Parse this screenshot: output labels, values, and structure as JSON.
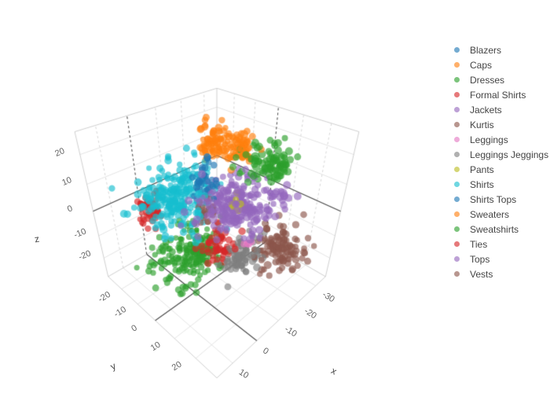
{
  "chart_data": {
    "type": "scatter3d",
    "title": "",
    "legend_position": "right",
    "marker_opacity": 0.65,
    "marker_size_px": 8.5,
    "style": {
      "background": "#ffffff",
      "grid_color": "#e4e4e4",
      "wall_edge_color": "#cfcfcf",
      "zeroline_color": "#4a4a4a",
      "tick_color": "#636363"
    },
    "axes": {
      "x": {
        "label": "x",
        "ticks": [
          -30,
          -20,
          -10,
          0,
          10
        ],
        "range": [
          -36,
          16
        ]
      },
      "y": {
        "label": "y",
        "ticks": [
          -20,
          -10,
          0,
          10,
          20
        ],
        "range": [
          -29,
          29
        ]
      },
      "z": {
        "label": "z",
        "ticks": [
          -20,
          -10,
          0,
          10,
          20
        ],
        "range": [
          -29,
          27
        ]
      }
    },
    "series": [
      {
        "name": "Blazers",
        "color": "#1f77b4",
        "center": [
          -9,
          -4,
          9
        ],
        "spread": [
          2,
          2,
          2.5
        ],
        "count": 25
      },
      {
        "name": "Caps",
        "color": "#ff7f0e",
        "center": [
          -18,
          -9,
          19
        ],
        "spread": [
          3.5,
          3,
          2.5
        ],
        "count": 80
      },
      {
        "name": "Dresses",
        "color": "#2ca02c",
        "center": [
          -20,
          12,
          18
        ],
        "spread": [
          4,
          3.5,
          3
        ],
        "count": 90
      },
      {
        "name": "Formal Shirts",
        "color": "#d62728",
        "center": [
          -1,
          -25,
          -7
        ],
        "spread": [
          2.5,
          2.5,
          3
        ],
        "count": 55
      },
      {
        "name": "Jackets",
        "color": "#9467bd",
        "center": [
          -12,
          7,
          5
        ],
        "spread": [
          6,
          6,
          4
        ],
        "count": 230
      },
      {
        "name": "Kurtis",
        "color": "#8c564b",
        "center": [
          -10,
          -4,
          -1
        ],
        "spread": [
          2,
          2,
          3
        ],
        "count": 30
      },
      {
        "name": "Leggings",
        "color": "#e377c2",
        "center": [
          -11,
          13,
          -7
        ],
        "spread": [
          1,
          1,
          1.5
        ],
        "count": 4
      },
      {
        "name": "Leggings Jeggings",
        "color": "#7f7f7f",
        "center": [
          -10,
          12,
          -12
        ],
        "spread": [
          3.5,
          3,
          3
        ],
        "count": 90
      },
      {
        "name": "Pants",
        "color": "#bcbd22",
        "center": [
          -12,
          7.5,
          5.5
        ],
        "spread": [
          1.5,
          1.5,
          2
        ],
        "count": 8
      },
      {
        "name": "Shirts",
        "color": "#17becf",
        "center": [
          -4,
          -13,
          2
        ],
        "spread": [
          6,
          6,
          5
        ],
        "count": 260
      },
      {
        "name": "Shirts Tops",
        "color": "#1f77b4",
        "center": [
          -11,
          -6,
          12
        ],
        "spread": [
          2,
          2,
          3
        ],
        "count": 10
      },
      {
        "name": "Sweaters",
        "color": "#ff7f0e",
        "center": [
          -16,
          3,
          21
        ],
        "spread": [
          2.5,
          2.5,
          2
        ],
        "count": 45
      },
      {
        "name": "Sweatshirts",
        "color": "#2ca02c",
        "center": [
          -6,
          -9,
          -21
        ],
        "spread": [
          6,
          5,
          4.5
        ],
        "count": 220
      },
      {
        "name": "Ties",
        "color": "#d62728",
        "center": [
          -6,
          5,
          -9
        ],
        "spread": [
          2.5,
          2.5,
          2.5
        ],
        "count": 50
      },
      {
        "name": "Tops",
        "color": "#9467bd",
        "center": [
          -15,
          22,
          12
        ],
        "spread": [
          2,
          3,
          3
        ],
        "count": 12
      },
      {
        "name": "Vests",
        "color": "#8c564b",
        "center": [
          -17,
          21,
          -7
        ],
        "spread": [
          4,
          3.5,
          3.5
        ],
        "count": 110
      }
    ]
  }
}
